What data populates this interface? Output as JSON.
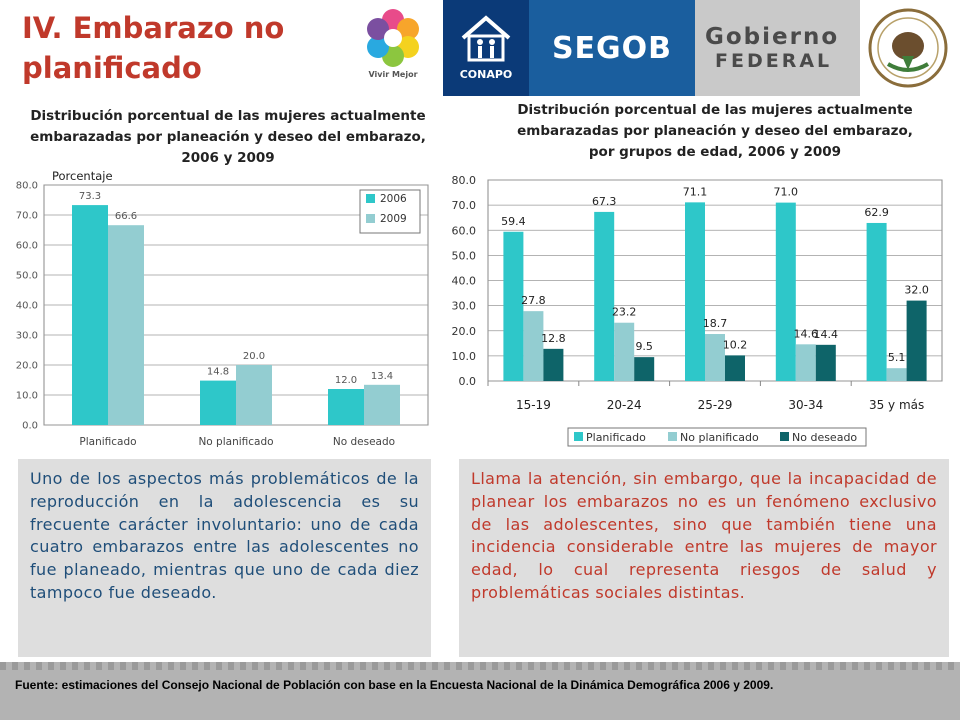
{
  "header": {
    "title_line1": "IV. Embarazo no",
    "title_line2": "planificado",
    "logos": {
      "vivir": "Vivir Mejor",
      "conapo": "CONAPO",
      "segob": "SEGOB",
      "gobierno1": "Gobierno",
      "gobierno2": "FEDERAL",
      "escudo_icon": "escudo-nacional-icon"
    }
  },
  "colors": {
    "planificado": "#2ec7c9",
    "no_planificado": "#93cdd1",
    "no_deseado": "#0e6469",
    "title_red": "#c0392b",
    "text_blue": "#1f4e79"
  },
  "chart_data": [
    {
      "type": "bar",
      "title": "Distribución porcentual de las mujeres actualmente embarazadas por planeación y deseo del embarazo, 2006 y 2009",
      "title_lines": [
        "Distribución porcentual de las mujeres actualmente",
        "embarazadas por planeación y deseo del embarazo,",
        "2006 y 2009"
      ],
      "ylabel": "Porcentaje",
      "categories": [
        "Planificado",
        "No planificado",
        "No deseado"
      ],
      "series": [
        {
          "name": "2006",
          "values": [
            73.3,
            14.8,
            12.0
          ],
          "labels": [
            "73.3",
            "14.8",
            "12.0"
          ]
        },
        {
          "name": "2009",
          "values": [
            66.6,
            20.0,
            13.4
          ],
          "labels": [
            "66.6",
            "20.0",
            "13.4"
          ]
        }
      ],
      "ylim": [
        0,
        80
      ],
      "yticks": [
        "0.0",
        "10.0",
        "20.0",
        "30.0",
        "40.0",
        "50.0",
        "60.0",
        "70.0",
        "80.0"
      ],
      "grid": true,
      "legend": "top-right"
    },
    {
      "type": "bar",
      "title": "Distribución porcentual de las mujeres actualmente embarazadas por planeación y deseo del embarazo, por grupos de edad, 2006 y 2009",
      "title_lines": [
        "Distribución porcentual de las mujeres actualmente",
        "embarazadas por planeación y deseo del embarazo,",
        "por grupos de edad, 2006 y 2009"
      ],
      "categories": [
        "15-19",
        "20-24",
        "25-29",
        "30-34",
        "35 y más"
      ],
      "series": [
        {
          "name": "Planificado",
          "values": [
            59.4,
            67.3,
            71.1,
            71.0,
            62.9
          ],
          "labels": [
            "59.4",
            "67.3",
            "71.1",
            "71.0",
            "62.9"
          ]
        },
        {
          "name": "No planificado",
          "values": [
            27.8,
            23.2,
            18.7,
            14.6,
            5.1
          ],
          "labels": [
            "27.8",
            "23.2",
            "18.7",
            "14.6",
            "5.1"
          ]
        },
        {
          "name": "No deseado",
          "values": [
            12.8,
            9.5,
            10.2,
            14.4,
            32.0
          ],
          "labels": [
            "12.8",
            "9.5",
            "10.2",
            "14.4",
            "32.0"
          ]
        }
      ],
      "ylim": [
        0,
        80
      ],
      "yticks": [
        "0.0",
        "10.0",
        "20.0",
        "30.0",
        "40.0",
        "50.0",
        "60.0",
        "70.0",
        "80.0"
      ],
      "grid": true,
      "legend": "bottom"
    }
  ],
  "text_left": "Uno de los aspectos más problemáticos de la reproducción en la adolescencia es su frecuente carácter involuntario: uno de cada cuatro embarazos entre las adolescentes no fue planeado, mientras que uno de cada diez tampoco fue deseado.",
  "text_right": "Llama la atención, sin embargo, que la incapacidad de planear los embarazos no es un fenómeno exclusivo de las adolescentes, sino que también tiene una incidencia considerable entre las mujeres de mayor edad, lo cual representa riesgos de salud y problemáticas sociales distintas.",
  "footer": "Fuente: estimaciones del Consejo Nacional de Población con base en la Encuesta Nacional de la Dinámica Demográfica 2006 y 2009."
}
